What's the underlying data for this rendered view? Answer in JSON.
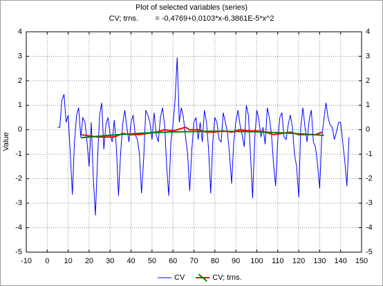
{
  "chart_data": {
    "type": "line",
    "title": "Plot of selected variables (series)",
    "subtitle": "CV; trns.        = -0,4769+0,0103*x-6,3861E-5*x^2",
    "ylabel": "Value",
    "xlim": [
      -10,
      150
    ],
    "ylim": [
      -5,
      4
    ],
    "xticks": [
      -10,
      0,
      10,
      20,
      30,
      40,
      50,
      60,
      70,
      80,
      90,
      100,
      110,
      120,
      130,
      140,
      150
    ],
    "yticks": [
      -5,
      -4,
      -3,
      -2,
      -1,
      0,
      1,
      2,
      3,
      4
    ],
    "grid": true,
    "legend": "bottom",
    "series": [
      {
        "name": "CV",
        "color": "#0000ff",
        "x": [
          5,
          6,
          7,
          8,
          9,
          10,
          11,
          12,
          13,
          14,
          15,
          16,
          17,
          18,
          19,
          20,
          21,
          22,
          23,
          24,
          25,
          26,
          27,
          28,
          29,
          30,
          31,
          32,
          33,
          34,
          35,
          36,
          37,
          38,
          39,
          40,
          41,
          42,
          43,
          44,
          45,
          46,
          47,
          48,
          49,
          50,
          51,
          52,
          53,
          54,
          55,
          56,
          57,
          58,
          59,
          60,
          61,
          62,
          63,
          64,
          65,
          66,
          67,
          68,
          69,
          70,
          71,
          72,
          73,
          74,
          75,
          76,
          77,
          78,
          79,
          80,
          81,
          82,
          83,
          84,
          85,
          86,
          87,
          88,
          89,
          90,
          91,
          92,
          93,
          94,
          95,
          96,
          97,
          98,
          99,
          100,
          101,
          102,
          103,
          104,
          105,
          106,
          107,
          108,
          109,
          110,
          111,
          112,
          113,
          114,
          115,
          116,
          117,
          118,
          119,
          120,
          121,
          122,
          123,
          124,
          125,
          126,
          127,
          128,
          129,
          130,
          131,
          132,
          133,
          134,
          135,
          136,
          137,
          138,
          139,
          140,
          141,
          142,
          143,
          144
        ],
        "values": [
          0.1,
          0.1,
          1.2,
          1.45,
          0.3,
          0.6,
          -1,
          -2.65,
          -0.5,
          0.6,
          0.9,
          -0.3,
          0.5,
          0.3,
          -0.5,
          -1.5,
          0.3,
          -2,
          -3.5,
          -1.2,
          0.6,
          1.1,
          -0.8,
          0.2,
          0.5,
          -0.2,
          -0.5,
          0.4,
          -0.7,
          -2.7,
          -1,
          0.2,
          0.8,
          0.1,
          -0.5,
          0.3,
          0.6,
          -0.2,
          -0.4,
          -1,
          -2.6,
          -1.2,
          0.8,
          0.6,
          0.3,
          -0.4,
          0.7,
          -0.2,
          -0.5,
          0.5,
          0.9,
          0.2,
          -1.5,
          -2.7,
          -0.5,
          0.2,
          1.2,
          2.95,
          0.3,
          0.9,
          0.5,
          -0.3,
          -1,
          -2.5,
          -0.8,
          0.3,
          0.5,
          -0.4,
          0.3,
          -0.5,
          0.8,
          0.3,
          -0.8,
          -2.6,
          -0.5,
          0.5,
          0.3,
          -0.4,
          -0.5,
          0.7,
          0.3,
          -0.1,
          -1,
          -2.2,
          -0.5,
          0.3,
          0.8,
          0.2,
          -0.2,
          -0.7,
          1,
          0.6,
          -1,
          -2.8,
          -0.4,
          0.8,
          0.4,
          -0.3,
          0.1,
          -0.6,
          0.9,
          0.5,
          -0.2,
          -1.4,
          -2.3,
          -0.4,
          0.5,
          0.7,
          -0.3,
          -0.4,
          0.2,
          0.6,
          0.1,
          -1,
          -1.5,
          -2.75,
          0.1,
          0.9,
          0.1,
          -0.5,
          0.4,
          0.8,
          -0.5,
          -0.7,
          -1.4,
          -2.4,
          -0.3,
          0.4,
          1.1,
          0.5,
          0.2,
          0.1,
          -0.4,
          -0.1,
          0.3,
          0.3,
          -0.5,
          -1.3,
          -2.3,
          -0.3
        ]
      },
      {
        "name": "CV; trns.",
        "color": "#ff0000",
        "x": [
          16,
          20,
          24,
          28,
          32,
          36,
          40,
          44,
          48,
          52,
          56,
          60,
          64,
          66,
          68,
          72,
          76,
          80,
          84,
          88,
          92,
          96,
          100,
          104,
          108,
          112,
          116,
          120,
          124,
          128,
          131
        ],
        "values": [
          -0.2,
          -0.25,
          -0.3,
          -0.3,
          -0.3,
          -0.15,
          -0.2,
          -0.2,
          -0.15,
          -0.1,
          0,
          -0.05,
          0.05,
          0.1,
          0,
          0,
          -0.1,
          -0.1,
          -0.05,
          -0.1,
          0,
          -0.05,
          -0.05,
          -0.1,
          -0.2,
          -0.15,
          -0.1,
          -0.2,
          -0.2,
          -0.2,
          -0.1
        ],
        "fit": {
          "color": "#008000",
          "x": [
            16,
            30,
            45,
            60,
            80,
            100,
            115,
            132
          ],
          "values": [
            -0.328,
            -0.225,
            -0.143,
            -0.089,
            -0.062,
            -0.086,
            -0.137,
            -0.23
          ]
        }
      }
    ]
  }
}
